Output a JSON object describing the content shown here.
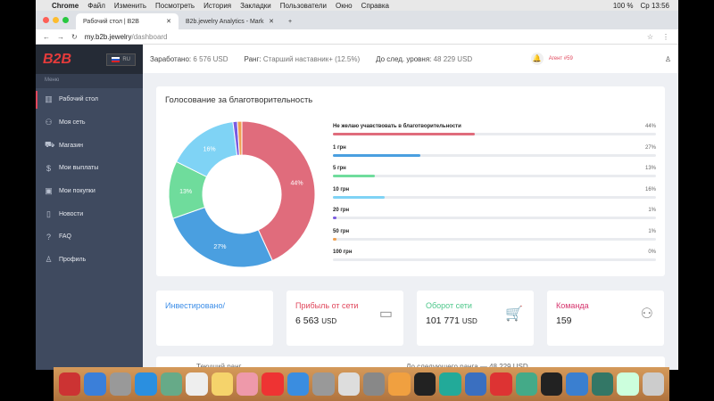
{
  "os_menubar": {
    "app": "Chrome",
    "items": [
      "Файл",
      "Изменить",
      "Посмотреть",
      "История",
      "Закладки",
      "Пользователи",
      "Окно",
      "Справка"
    ],
    "battery": "100 %",
    "clock": "Ср 13:56"
  },
  "tabs": [
    {
      "title": "Рабочий стол | B2B",
      "active": true
    },
    {
      "title": "B2b.jewelry Analytics - Mark",
      "active": false
    }
  ],
  "address": {
    "host": "my.b2b.jewelry",
    "path": "/dashboard"
  },
  "sidebar": {
    "logo": "B2B",
    "lang": "RU",
    "menu_label": "Меню",
    "items": [
      {
        "label": "Рабочий стол",
        "icon": "chart-icon",
        "glyph": "▥",
        "active": true
      },
      {
        "label": "Моя сеть",
        "icon": "users-icon",
        "glyph": "⚇"
      },
      {
        "label": "Магазин",
        "icon": "cart-icon",
        "glyph": "⛟"
      },
      {
        "label": "Мои выплаты",
        "icon": "dollar-icon",
        "glyph": "$"
      },
      {
        "label": "Мои покупки",
        "icon": "bag-icon",
        "glyph": "▣"
      },
      {
        "label": "Новости",
        "icon": "book-icon",
        "glyph": "▯"
      },
      {
        "label": "FAQ",
        "icon": "question-icon",
        "glyph": "?"
      },
      {
        "label": "Профиль",
        "icon": "user-icon",
        "glyph": "♙"
      }
    ]
  },
  "header": {
    "earned_label": "Заработано:",
    "earned_value": "6 576 USD",
    "rank_label": "Ранг:",
    "rank_value": "Старший наставник+ (12.5%)",
    "next_label": "До след. уровня:",
    "next_value": "48 229 USD",
    "agent": "Агент #59"
  },
  "chart_data": {
    "type": "pie",
    "title": "Голосование за благотворительность",
    "categories": [
      "Не желаю учавствовать в благотворительности",
      "1 грн",
      "5 грн",
      "10 грн",
      "20 грн",
      "50 грн",
      "100 грн"
    ],
    "values": [
      44,
      27,
      13,
      16,
      1,
      1,
      0
    ],
    "labels": [
      "44%",
      "27%",
      "13%",
      "16%",
      "1%",
      "1%",
      "0%"
    ],
    "colors": [
      "#e06c7c",
      "#4a9fe0",
      "#6fdc9c",
      "#7fd3f5",
      "#7b5be0",
      "#f0a050",
      "#cccccc"
    ]
  },
  "stats": [
    {
      "title": "Инвестировано/",
      "value": "",
      "unit": "",
      "color": "#3d8ee8",
      "icon": ""
    },
    {
      "title": "Прибыль от сети",
      "value": "6 563",
      "unit": "USD",
      "color": "#e0475c",
      "icon": "credit-card-icon",
      "glyph": "▭"
    },
    {
      "title": "Оборот сети",
      "value": "101 771",
      "unit": "USD",
      "color": "#4cc78a",
      "icon": "cart-icon",
      "glyph": "🛒"
    },
    {
      "title": "Команда",
      "value": "159",
      "unit": "",
      "color": "#d6336c",
      "icon": "users-icon",
      "glyph": "⚇"
    }
  ],
  "bottom": {
    "current_rank": "Текущий ранг",
    "next_rank": "До следующего ранга — 48 229 USD"
  }
}
